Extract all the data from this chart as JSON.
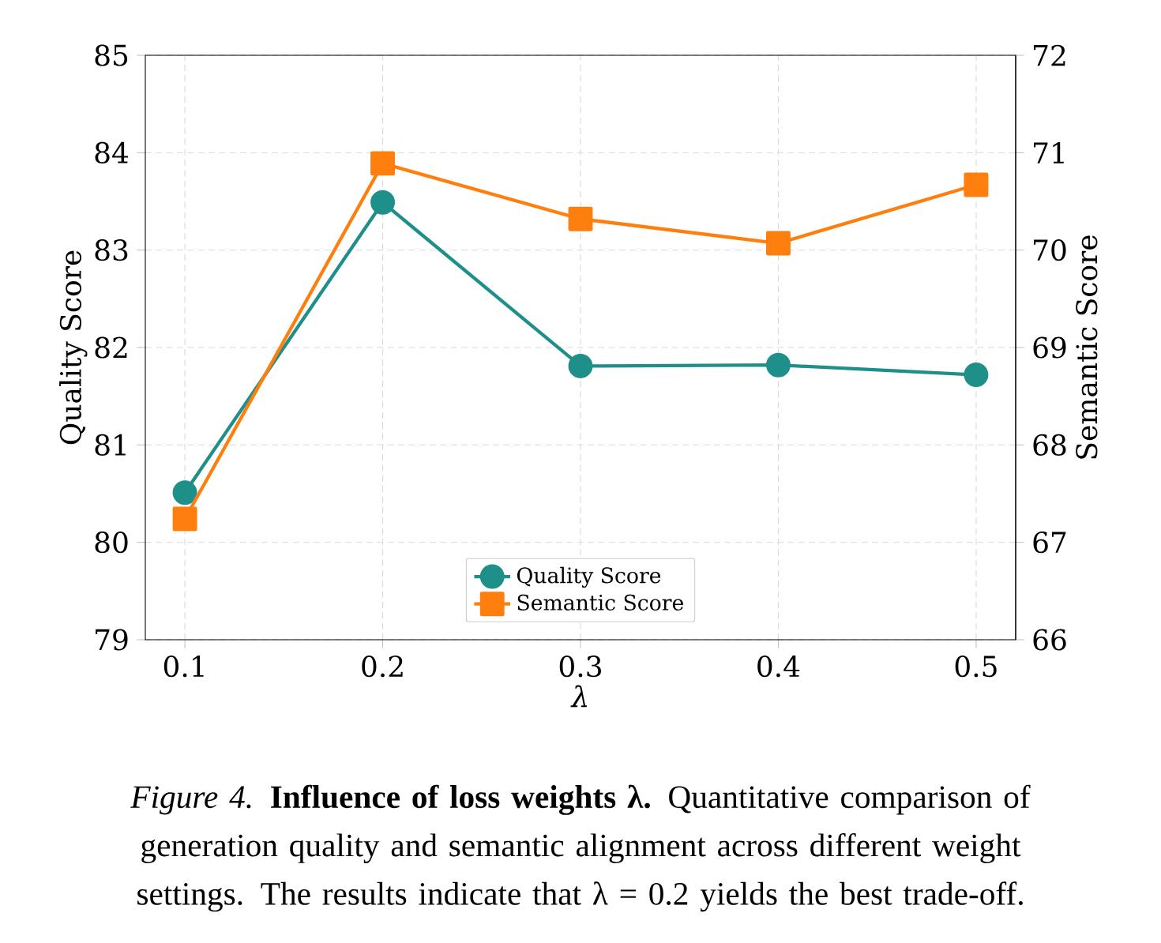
{
  "chart_data": {
    "type": "line",
    "xlabel": "λ",
    "ylabel": "Quality Score",
    "y2label": "Semantic Score",
    "x": [
      0.1,
      0.2,
      0.3,
      0.4,
      0.5
    ],
    "xlim": [
      0.08,
      0.52
    ],
    "xticks": [
      0.1,
      0.2,
      0.3,
      0.4,
      0.5
    ],
    "ylim": [
      79,
      85
    ],
    "yticks": [
      79,
      80,
      81,
      82,
      83,
      84,
      85
    ],
    "y2lim": [
      66,
      72
    ],
    "y2ticks": [
      66,
      67,
      68,
      69,
      70,
      71,
      72
    ],
    "grid": true,
    "legend": "bottom",
    "line_style": "solid",
    "series": [
      {
        "name": "Quality Score",
        "color": "#1f8f8a",
        "marker": "circle",
        "values": [
          80.51,
          83.49,
          81.81,
          81.82,
          81.72
        ]
      },
      {
        "name": "Semantic Score",
        "color": "#ff7f0e",
        "marker": "square",
        "axis": "y2",
        "values": [
          67.24,
          70.89,
          70.32,
          70.07,
          70.67
        ]
      }
    ],
    "annotations": [
      "*Figure 4.* **Influence of loss weights λ.** Quantitative comparison of generation quality and semantic alignment across different weight settings. The results indicate that λ = 0.2 yields the best trade-off."
    ]
  }
}
